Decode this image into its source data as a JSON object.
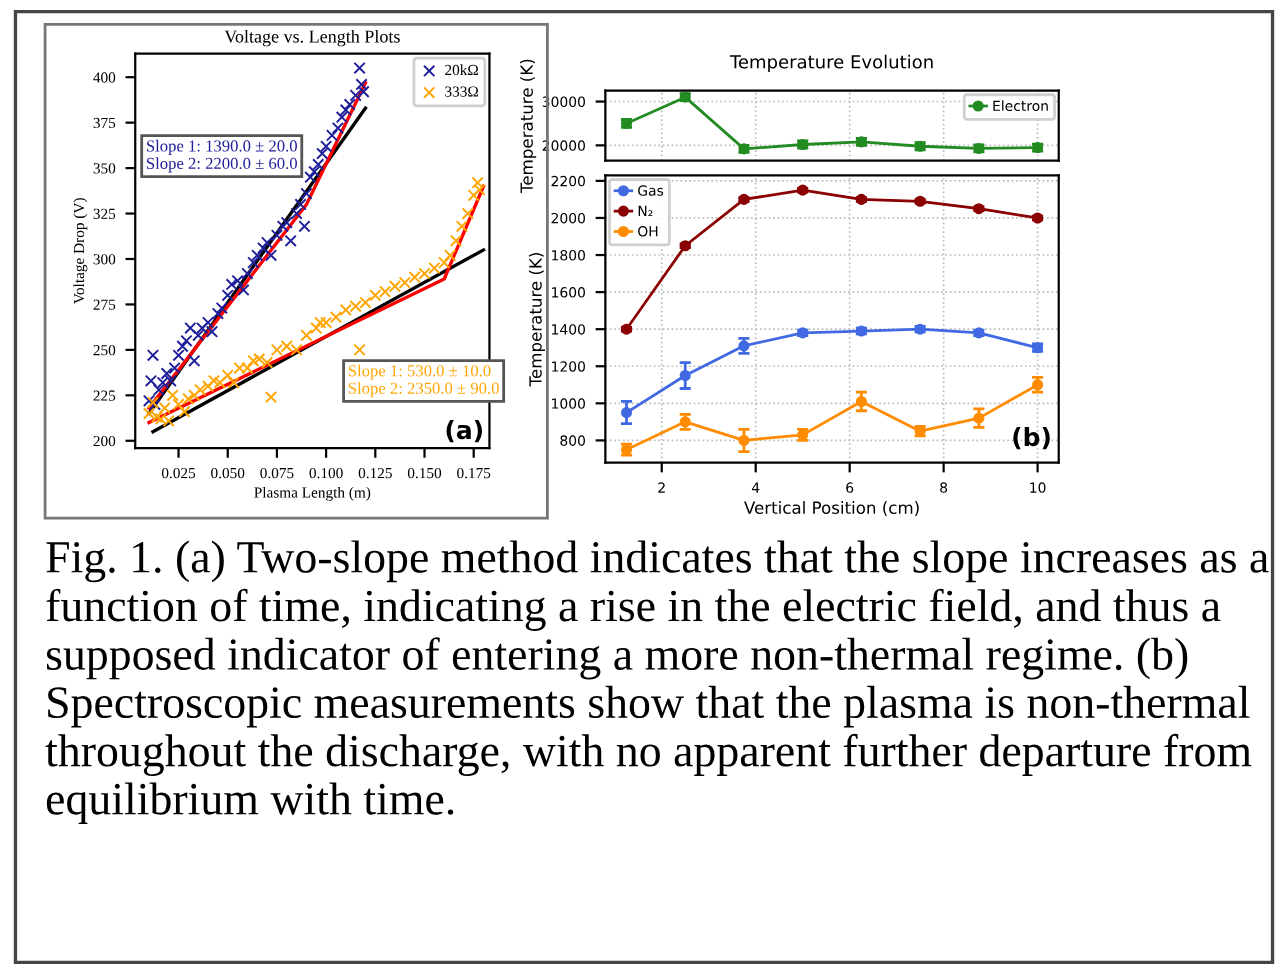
{
  "chart_data": [
    {
      "type": "scatter",
      "title": "Voltage vs. Length Plots",
      "xlabel": "Plasma Length (m)",
      "ylabel": "Voltage Drop (V)",
      "xlim": [
        0.003,
        0.183
      ],
      "xticks": [
        {
          "value": 0.025,
          "label": "0.025"
        },
        {
          "value": 0.05,
          "label": "0.050"
        },
        {
          "value": 0.075,
          "label": "0.075"
        },
        {
          "value": 0.1,
          "label": "0.100"
        },
        {
          "value": 0.125,
          "label": "0.125"
        },
        {
          "value": 0.15,
          "label": "0.150"
        },
        {
          "value": 0.175,
          "label": "0.175"
        }
      ],
      "ylim": [
        196,
        413
      ],
      "yticks": [
        200,
        225,
        250,
        275,
        300,
        325,
        350,
        375,
        400
      ],
      "legend": "top right",
      "grid": false,
      "series": [
        {
          "name": "20kΩ",
          "color": "#1f1f9a",
          "marker": "cross",
          "x": [
            0.01,
            0.011,
            0.012,
            0.013,
            0.015,
            0.017,
            0.019,
            0.021,
            0.023,
            0.025,
            0.027,
            0.029,
            0.031,
            0.033,
            0.035,
            0.037,
            0.04,
            0.042,
            0.045,
            0.047,
            0.05,
            0.052,
            0.055,
            0.058,
            0.06,
            0.063,
            0.065,
            0.068,
            0.07,
            0.072,
            0.075,
            0.078,
            0.08,
            0.082,
            0.085,
            0.087,
            0.089,
            0.09,
            0.092,
            0.094,
            0.096,
            0.098,
            0.1,
            0.103,
            0.106,
            0.108,
            0.11,
            0.112,
            0.115,
            0.117,
            0.118,
            0.119
          ],
          "values": [
            222,
            233,
            247,
            220,
            228,
            232,
            237,
            233,
            240,
            247,
            252,
            255,
            262,
            244,
            258,
            262,
            265,
            260,
            270,
            273,
            280,
            286,
            288,
            283,
            292,
            298,
            302,
            306,
            309,
            302,
            313,
            318,
            320,
            310,
            325,
            330,
            318,
            336,
            345,
            348,
            352,
            358,
            362,
            368,
            372,
            378,
            382,
            385,
            390,
            405,
            396,
            392
          ]
        },
        {
          "name": "333Ω",
          "color": "#ffa500",
          "marker": "cross",
          "x": [
            0.01,
            0.012,
            0.014,
            0.016,
            0.018,
            0.02,
            0.022,
            0.025,
            0.028,
            0.03,
            0.033,
            0.036,
            0.04,
            0.043,
            0.046,
            0.05,
            0.053,
            0.056,
            0.06,
            0.063,
            0.066,
            0.07,
            0.072,
            0.075,
            0.08,
            0.085,
            0.09,
            0.095,
            0.097,
            0.1,
            0.105,
            0.11,
            0.115,
            0.117,
            0.12,
            0.125,
            0.13,
            0.135,
            0.14,
            0.145,
            0.15,
            0.155,
            0.16,
            0.163,
            0.166,
            0.169,
            0.172,
            0.175,
            0.177,
            0.178
          ],
          "values": [
            215,
            221,
            213,
            212,
            218,
            211,
            225,
            220,
            216,
            223,
            225,
            228,
            230,
            233,
            232,
            236,
            232,
            240,
            240,
            244,
            245,
            243,
            224,
            250,
            252,
            250,
            258,
            262,
            265,
            265,
            268,
            272,
            274,
            250,
            276,
            280,
            282,
            285,
            287,
            290,
            292,
            295,
            298,
            302,
            310,
            318,
            325,
            335,
            342,
            338
          ]
        },
        {
          "type": "line",
          "color": "#000000",
          "x": [
            0.01,
            0.12
          ],
          "values": [
            215,
            383
          ]
        },
        {
          "type": "line",
          "color": "#ff0000",
          "x": [
            0.01,
            0.09,
            0.12
          ],
          "values": [
            218,
            330,
            397
          ]
        },
        {
          "type": "line",
          "color": "#000000",
          "x": [
            0.012,
            0.18
          ],
          "values": [
            205,
            305
          ]
        },
        {
          "type": "line",
          "color": "#ff0000",
          "x": [
            0.01,
            0.16,
            0.18
          ],
          "values": [
            210,
            289,
            340
          ]
        }
      ],
      "annotations": [
        "Slope 1: 1390.0 ± 20.0\nSlope 2: 2200.0 ± 60.0",
        "Slope 1: 530.0 ± 10.0\nSlope 2: 2350.0 ± 90.0",
        "(a)"
      ]
    },
    {
      "type": "line",
      "title": "Temperature Evolution",
      "ylabel": "Temperature (K)",
      "xlim": [
        0.8,
        10.45
      ],
      "ylim": [
        16500,
        32500
      ],
      "yticks": [
        20000,
        30000
      ],
      "tick_labels": "y",
      "grid": true,
      "legend": "top right",
      "marker": "circle",
      "x": [
        1.25,
        2.5,
        3.75,
        5,
        6.25,
        7.5,
        8.75,
        10
      ],
      "series": [
        {
          "name": "Electron",
          "color": "#228b22",
          "values": [
            25000,
            31000,
            19200,
            20200,
            20800,
            19800,
            19300,
            19500
          ],
          "errors": [
            900,
            800,
            800,
            800,
            800,
            800,
            800,
            800
          ]
        }
      ]
    },
    {
      "type": "line",
      "xlabel": "Vertical Position (cm)",
      "ylabel": "Temperature (K)",
      "xlim": [
        0.8,
        10.45
      ],
      "xticks": [
        2,
        4,
        6,
        8,
        10
      ],
      "ylim": [
        680,
        2230
      ],
      "yticks": [
        800,
        1000,
        1200,
        1400,
        1600,
        1800,
        2000,
        2200
      ],
      "grid": true,
      "legend": "top left",
      "marker": "circle",
      "x": [
        1.25,
        2.5,
        3.75,
        5,
        6.25,
        7.5,
        8.75,
        10
      ],
      "series": [
        {
          "name": "Gas",
          "color": "#4169e1",
          "values": [
            950,
            1150,
            1310,
            1380,
            1390,
            1400,
            1380,
            1300
          ],
          "errors": [
            60,
            70,
            40,
            15,
            15,
            15,
            15,
            20
          ]
        },
        {
          "name": "N₂",
          "color": "#8b0000",
          "values": [
            1400,
            1850,
            2100,
            2150,
            2100,
            2090,
            2050,
            2000
          ],
          "errors": [
            10,
            10,
            10,
            10,
            10,
            10,
            10,
            10
          ]
        },
        {
          "name": "OH",
          "color": "#ff8c00",
          "values": [
            750,
            900,
            800,
            830,
            1010,
            850,
            920,
            1100
          ],
          "errors": [
            30,
            40,
            60,
            30,
            50,
            25,
            50,
            40
          ]
        }
      ],
      "annotations": [
        "(b)",
        "Fig. 1. (a) Two-slope method indicates that the slope increases as a function of time, indicating a rise in the electric field, and thus a supposed indicator of entering a more non-thermal regime. (b) Spectroscopic measurements show that the plasma is non-thermal throughout the discharge, with no apparent further departure from equilibrium with time."
      ]
    }
  ]
}
